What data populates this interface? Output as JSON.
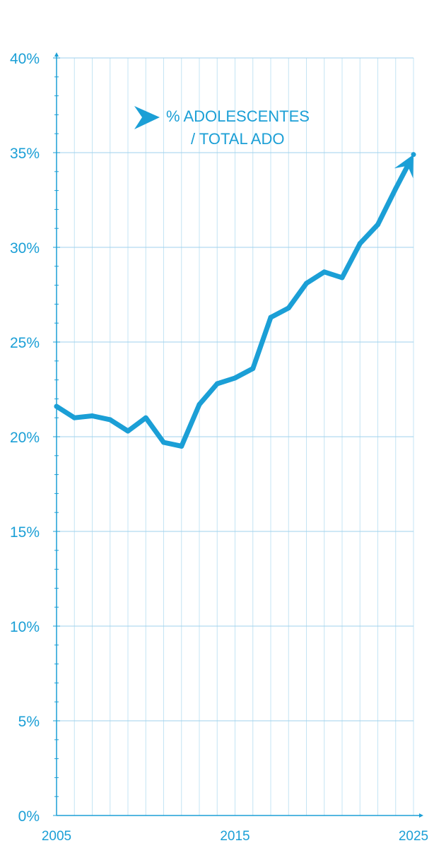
{
  "chart_data": {
    "type": "line",
    "title": "",
    "xlabel": "",
    "ylabel": "",
    "xlim": [
      2005,
      2025
    ],
    "ylim": [
      0,
      40
    ],
    "x_ticks": [
      "2005",
      "2015",
      "2025"
    ],
    "y_ticks": [
      "0%",
      "5%",
      "10%",
      "15%",
      "20%",
      "25%",
      "30%",
      "35%",
      "40%"
    ],
    "grid": true,
    "legend_position": "top-center",
    "series": [
      {
        "name": "% ADOLESCENTES / TOTAL ADO",
        "name_lines": [
          "% ADOLESCENTES",
          "/ TOTAL ADO"
        ],
        "color": "#1b9fd6",
        "x": [
          2005,
          2006,
          2007,
          2008,
          2009,
          2010,
          2011,
          2012,
          2013,
          2014,
          2015,
          2016,
          2017,
          2018,
          2019,
          2020,
          2021,
          2022,
          2023,
          2024,
          2025
        ],
        "values": [
          21.6,
          21.0,
          21.1,
          20.9,
          20.3,
          21.0,
          19.7,
          19.5,
          21.7,
          22.8,
          23.1,
          23.6,
          26.3,
          26.8,
          28.1,
          28.7,
          28.4,
          30.2,
          31.2,
          33.1,
          34.9
        ]
      }
    ]
  }
}
